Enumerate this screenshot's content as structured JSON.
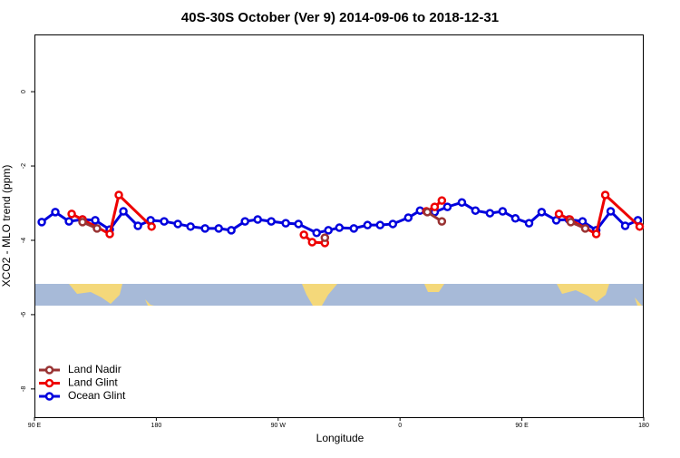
{
  "chart_data": {
    "type": "line",
    "title": "40S-30S October (Ver 9)   2014-09-06 to 2018-12-31",
    "x_label": "Longitude",
    "y_label": "XCO2 - MLO trend (ppm)",
    "xlim": [
      90,
      540
    ],
    "ylim": [
      -8.76,
      1.54
    ],
    "xticks": [
      {
        "value": 90,
        "label": "90 E"
      },
      {
        "value": 180,
        "label": "180"
      },
      {
        "value": 270,
        "label": "90 W"
      },
      {
        "value": 360,
        "label": "0"
      },
      {
        "value": 450,
        "label": "90 E"
      },
      {
        "value": 540,
        "label": "180"
      }
    ],
    "yticks": [
      0,
      -2,
      -4,
      -6,
      -8
    ],
    "legend_position": "bottom-left",
    "series": [
      {
        "name": "Land Nadir",
        "color": "#993333",
        "x": [
          125.5,
          136.2,
          null,
          304.5,
          null,
          380.2,
          390.9,
          null,
          486.1,
          496.8
        ],
        "values": [
          -3.51,
          -3.68,
          null,
          -3.93,
          null,
          -3.24,
          -3.49,
          null,
          -3.51,
          -3.68
        ]
      },
      {
        "name": "Land Glint",
        "color": "#ee0000",
        "x": [
          117.5,
          125.5,
          145.6,
          152.3,
          176.5,
          null,
          289.0,
          295.1,
          304.5,
          null,
          379.5,
          385.6,
          390.9,
          null,
          477.4,
          485.4,
          504.9,
          511.6,
          537.0
        ],
        "values": [
          -3.29,
          -3.44,
          -3.83,
          -2.78,
          -3.63,
          null,
          -3.85,
          -4.05,
          -4.07,
          null,
          -3.22,
          -3.1,
          -2.93,
          null,
          -3.29,
          -3.44,
          -3.83,
          -2.78,
          -3.63
        ]
      },
      {
        "name": "Ocean Glint",
        "color": "#0000dd",
        "x": [
          95.4,
          105.4,
          115.5,
          125.5,
          134.9,
          145.6,
          155.7,
          166.4,
          175.8,
          185.8,
          195.9,
          205.3,
          216.0,
          226.1,
          235.4,
          245.5,
          254.9,
          264.9,
          275.6,
          285.0,
          298.4,
          307.1,
          315.2,
          325.9,
          336.0,
          345.3,
          354.7,
          366.1,
          374.8,
          385.6,
          395.0,
          405.7,
          415.7,
          426.4,
          435.8,
          445.2,
          455.3,
          464.6,
          475.4,
          484.7,
          494.8,
          504.9,
          515.6,
          526.3,
          535.7
        ],
        "values": [
          -3.51,
          -3.24,
          -3.49,
          -3.44,
          -3.46,
          -3.71,
          -3.22,
          -3.61,
          -3.46,
          -3.49,
          -3.56,
          -3.63,
          -3.68,
          -3.68,
          -3.73,
          -3.49,
          -3.44,
          -3.49,
          -3.54,
          -3.56,
          -3.8,
          -3.73,
          -3.66,
          -3.68,
          -3.59,
          -3.59,
          -3.56,
          -3.39,
          -3.2,
          -3.24,
          -3.1,
          -2.98,
          -3.2,
          -3.27,
          -3.22,
          -3.41,
          -3.54,
          -3.24,
          -3.46,
          -3.44,
          -3.49,
          -3.73,
          -3.22,
          -3.61,
          -3.46
        ]
      }
    ]
  }
}
